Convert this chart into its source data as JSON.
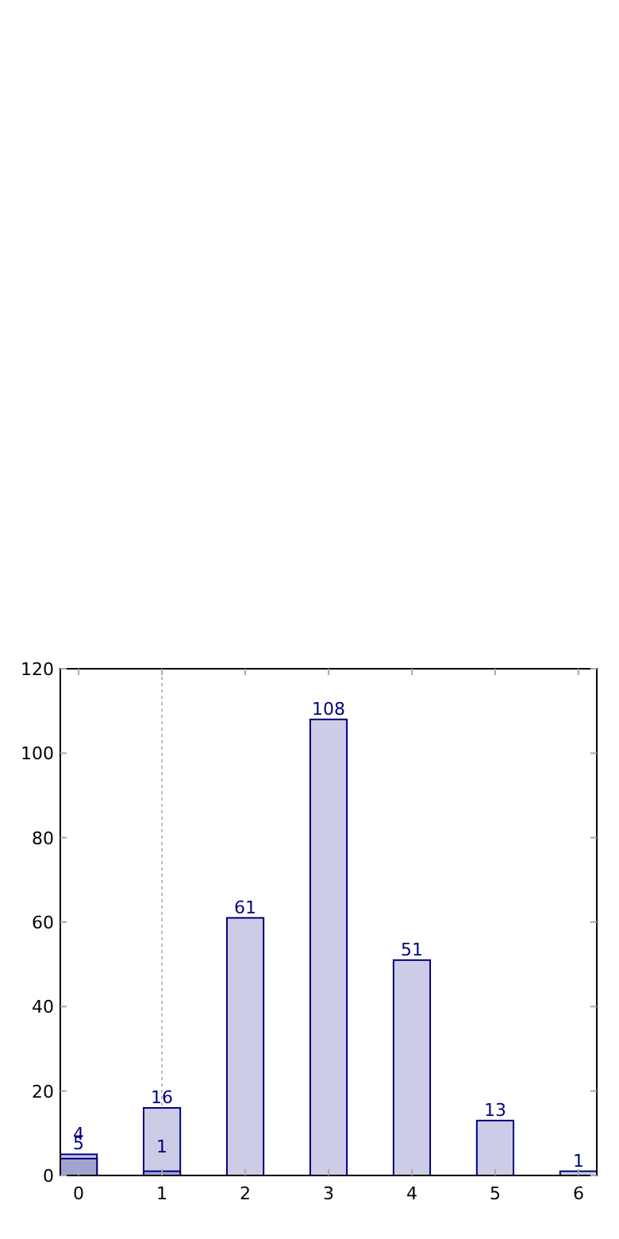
{
  "chart_data": {
    "type": "bar",
    "x": [
      0,
      1,
      2,
      3,
      4,
      5,
      6
    ],
    "series": [
      {
        "color": "#cccce6",
        "values": [
          5,
          16,
          61,
          108,
          51,
          13,
          1
        ]
      },
      {
        "color": "#a3a3d1",
        "values": [
          4,
          1,
          null,
          null,
          null,
          null,
          null
        ]
      }
    ],
    "xlim": [
      -0.22,
      6.22
    ],
    "xticks": [
      0,
      1,
      2,
      3,
      4,
      5,
      6
    ],
    "ylim": [
      0,
      120
    ],
    "yticks": [
      0,
      20,
      40,
      60,
      80,
      100,
      120
    ],
    "ref_lines": [
      {
        "axis": "x",
        "value": 1,
        "color": "#bbbbbb",
        "line_style": "dotted"
      }
    ],
    "data_labels": true,
    "grid": false
  }
}
